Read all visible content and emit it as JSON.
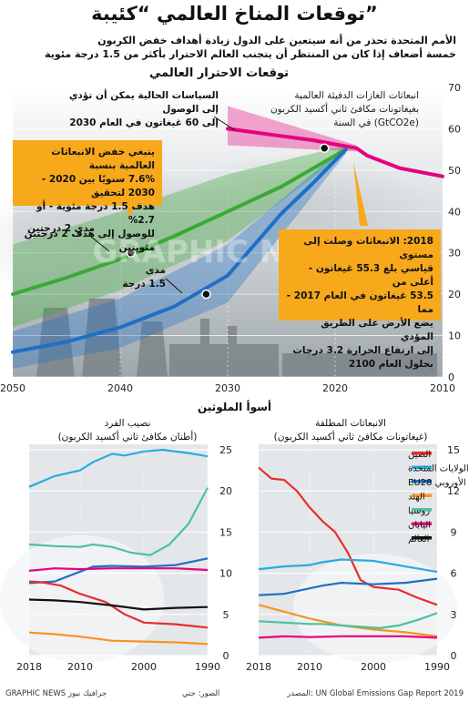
{
  "header": {
    "title": "توقعات المناخ العالمي “كئيبة”",
    "subtitle_line1": "الأمم المتحدة تحذر من أنه سيتعين على الدول زيادة أهداف خفض الكربون",
    "subtitle_line2": "خمسة أضعاف إذا كان من المنتظر أن يتجنب العالم الاحترار بأكثر من 1.5 درجة مئوية"
  },
  "main_chart": {
    "title": "توقعات الاحترار العالمي",
    "yaxis_note_1": "انبعاثات الغازات الدفيئة العالمية",
    "yaxis_note_2": "بغيغاتونات مكافئ ثاني أكسيد الكربون",
    "yaxis_note_3": "(GtCO2e) في السنة",
    "policy_note_1": "السياسات الحالية يمكن أن تؤدي إلى الوصول",
    "policy_note_2": "إلى 60 غيغاتون في العام 2030",
    "box_left_1": "ينبغي خفض الانبعاثات العالمية بنسبة",
    "box_left_2": "7.6% سنويًا بين 2020 - 2030 لتحقيق",
    "box_left_3": "هدف 1.5 درجة مئوية - أو 2.7%",
    "box_left_4": "للوصول إلى هدف 2 درجتين مئويتين",
    "box_right_1": "2018: الانبعاثات وصلت إلى مستوى",
    "box_right_2": "قياسي بلغ 55.3 غيغاتون - أعلى من",
    "box_right_3": "53.5 غيغاتون في العام 2017 - مما",
    "box_right_4": "يضع الأرض على الطريق المؤدي",
    "box_right_5": "إلى ارتفاع الحرارة 3.2 درجات",
    "box_right_6": "بحلول العام 2100",
    "label_2deg": "مدى 2 درجتين",
    "label_15deg_1": "مدى",
    "label_15deg_2": "1.5 درجة",
    "watermark": "GRAPHIC NEWS",
    "colors": {
      "current": "#e6007e",
      "two_deg": "#3aa935",
      "one_five": "#1f6fc5",
      "box": "#f7a81b"
    }
  },
  "bottom": {
    "section_title": "أسوأ الملوثين",
    "left_title_1": "نصيب الفرد",
    "left_title_2": "(أطنان مكافئ ثاني أكسيد الكربون)",
    "right_title_1": "الانبعاثات المطلقة",
    "right_title_2": "(غيغاتونات مكافئ ثاني أكسيد الكربون)"
  },
  "footer": {
    "source": "المصدر: UN Global Emissions Gap Report 2019",
    "photo": "الصور: جتي",
    "brand": "GRAPHIC NEWS جرافيك نيوز"
  },
  "chart_data": [
    {
      "type": "line",
      "title": "توقعات الاحترار العالمي",
      "xlabel": "",
      "ylabel": "انبعاثات الغازات الدفيئة العالمية بغيغاتونات مكافئ ثاني أكسيد الكربون (GtCO2e) في السنة",
      "xlim": [
        2010,
        2050
      ],
      "x_reversed": true,
      "ylim": [
        0,
        70
      ],
      "xticks": [
        2010,
        2020,
        2030,
        2040,
        2050
      ],
      "yticks": [
        0,
        10,
        20,
        30,
        40,
        50,
        60,
        70
      ],
      "series": [
        {
          "key": "historic",
          "color": "#e6007e",
          "points": [
            [
              2010,
              48.5
            ],
            [
              2014,
              50.5
            ],
            [
              2017,
              53.5
            ],
            [
              2018,
              55.3
            ]
          ]
        },
        {
          "key": "current_policy",
          "color": "#e6007e",
          "points": [
            [
              2018,
              55.3
            ],
            [
              2022,
              57.2
            ],
            [
              2026,
              58.6
            ],
            [
              2030,
              60
            ]
          ]
        },
        {
          "key": "two_degree",
          "color": "#3aa935",
          "points": [
            [
              2019,
              55
            ],
            [
              2025,
              46
            ],
            [
              2030,
              40
            ],
            [
              2035,
              34
            ],
            [
              2040,
              28.5
            ],
            [
              2045,
              24
            ],
            [
              2050,
              20
            ]
          ]
        },
        {
          "key": "one_five_degree",
          "color": "#1f6fc5",
          "points": [
            [
              2019,
              55
            ],
            [
              2022,
              47
            ],
            [
              2025,
              39.5
            ],
            [
              2030,
              24.5
            ],
            [
              2035,
              17
            ],
            [
              2040,
              12
            ],
            [
              2045,
              8.5
            ],
            [
              2050,
              6
            ]
          ]
        }
      ],
      "bands": [
        {
          "key": "current_policy_range",
          "color": "#e6007e",
          "upper": [
            [
              2018,
              56
            ],
            [
              2030,
              65.5
            ]
          ],
          "lower": [
            [
              2018,
              54.5
            ],
            [
              2030,
              56
            ]
          ]
        },
        {
          "key": "two_degree_range",
          "color": "#3aa935",
          "upper": [
            [
              2019,
              56
            ],
            [
              2030,
              49
            ],
            [
              2040,
              40
            ],
            [
              2050,
              32
            ]
          ],
          "lower": [
            [
              2019,
              54
            ],
            [
              2030,
              33
            ],
            [
              2040,
              21
            ],
            [
              2050,
              12
            ]
          ]
        },
        {
          "key": "one_five_degree_range",
          "color": "#1f6fc5",
          "upper": [
            [
              2019,
              56
            ],
            [
              2030,
              32
            ],
            [
              2040,
              19
            ],
            [
              2050,
              11
            ]
          ],
          "lower": [
            [
              2019,
              54
            ],
            [
              2030,
              18
            ],
            [
              2040,
              7
            ],
            [
              2050,
              2
            ]
          ]
        }
      ],
      "markers": [
        [
          2021,
          55.3
        ],
        [
          2039,
          30
        ],
        [
          2032,
          20
        ]
      ]
    },
    {
      "type": "line",
      "title": "نصيب الفرد",
      "ylabel": "أطنان مكافئ ثاني أكسيد الكربون",
      "xlim": [
        1990,
        2018
      ],
      "x_reversed": true,
      "ylim": [
        0,
        25
      ],
      "xticks": [
        1990,
        2000,
        2010,
        2018
      ],
      "yticks": [
        0,
        5,
        10,
        15,
        20,
        25
      ],
      "series": [
        {
          "name": "الولايات المتحدة",
          "color": "#29abe2",
          "points": [
            [
              1990,
              24.2
            ],
            [
              1993,
              24.6
            ],
            [
              1997,
              25
            ],
            [
              2000,
              24.8
            ],
            [
              2003,
              24.3
            ],
            [
              2005,
              24.5
            ],
            [
              2008,
              23.5
            ],
            [
              2010,
              22.5
            ],
            [
              2014,
              21.8
            ],
            [
              2018,
              20.5
            ]
          ]
        },
        {
          "name": "روسيا",
          "color": "#4ec0a0",
          "points": [
            [
              1990,
              20.4
            ],
            [
              1993,
              16
            ],
            [
              1996,
              13.5
            ],
            [
              1999,
              12.2
            ],
            [
              2002,
              12.5
            ],
            [
              2005,
              13.2
            ],
            [
              2008,
              13.5
            ],
            [
              2010,
              13.2
            ],
            [
              2014,
              13.3
            ],
            [
              2018,
              13.5
            ]
          ]
        },
        {
          "name": "الاتحاد الأوروبي EU28",
          "color": "#1f6fc5",
          "points": [
            [
              1990,
              11.8
            ],
            [
              1995,
              11
            ],
            [
              2000,
              10.8
            ],
            [
              2005,
              10.9
            ],
            [
              2008,
              10.8
            ],
            [
              2010,
              10.2
            ],
            [
              2014,
              9
            ],
            [
              2018,
              8.8
            ]
          ]
        },
        {
          "name": "اليابان",
          "color": "#e6007e",
          "points": [
            [
              1990,
              10.4
            ],
            [
              1995,
              10.6
            ],
            [
              2000,
              10.6
            ],
            [
              2005,
              10.6
            ],
            [
              2010,
              10.5
            ],
            [
              2014,
              10.6
            ],
            [
              2018,
              10.3
            ]
          ]
        },
        {
          "name": "الصين",
          "color": "#e62e2d",
          "points": [
            [
              1990,
              3.4
            ],
            [
              1995,
              3.8
            ],
            [
              2000,
              4
            ],
            [
              2003,
              5
            ],
            [
              2006,
              6.5
            ],
            [
              2010,
              7.5
            ],
            [
              2013,
              8.5
            ],
            [
              2016,
              8.9
            ],
            [
              2018,
              9
            ]
          ]
        },
        {
          "name": "العالم",
          "color": "#111111",
          "points": [
            [
              1990,
              5.9
            ],
            [
              1995,
              5.8
            ],
            [
              2000,
              5.6
            ],
            [
              2005,
              6.1
            ],
            [
              2010,
              6.5
            ],
            [
              2014,
              6.7
            ],
            [
              2018,
              6.8
            ]
          ]
        },
        {
          "name": "الهند",
          "color": "#f7941d",
          "points": [
            [
              1990,
              1.4
            ],
            [
              1995,
              1.6
            ],
            [
              2000,
              1.7
            ],
            [
              2005,
              1.8
            ],
            [
              2010,
              2.3
            ],
            [
              2014,
              2.6
            ],
            [
              2018,
              2.8
            ]
          ]
        }
      ]
    },
    {
      "type": "line",
      "title": "الانبعاثات المطلقة",
      "ylabel": "غيغاتونات مكافئ ثاني أكسيد الكربون",
      "xlim": [
        1990,
        2018
      ],
      "x_reversed": true,
      "ylim": [
        0,
        15
      ],
      "xticks": [
        1990,
        2000,
        2010,
        2018
      ],
      "yticks": [
        0,
        3,
        6,
        9,
        12,
        15
      ],
      "series": [
        {
          "name": "الصين",
          "color": "#e62e2d",
          "points": [
            [
              1990,
              3.7
            ],
            [
              1993,
              4.2
            ],
            [
              1996,
              4.8
            ],
            [
              2000,
              5
            ],
            [
              2002,
              5.5
            ],
            [
              2004,
              7.5
            ],
            [
              2006,
              9
            ],
            [
              2008,
              9.8
            ],
            [
              2010,
              10.8
            ],
            [
              2012,
              12
            ],
            [
              2014,
              12.8
            ],
            [
              2016,
              12.9
            ],
            [
              2018,
              13.7
            ]
          ]
        },
        {
          "name": "الولايات المتحدة",
          "color": "#29abe2",
          "points": [
            [
              1990,
              6.1
            ],
            [
              1995,
              6.5
            ],
            [
              2000,
              6.9
            ],
            [
              2005,
              7
            ],
            [
              2008,
              6.8
            ],
            [
              2010,
              6.6
            ],
            [
              2014,
              6.5
            ],
            [
              2018,
              6.3
            ]
          ]
        },
        {
          "name": "الاتحاد الأوروبي EU28",
          "color": "#1f6fc5",
          "points": [
            [
              1990,
              5.6
            ],
            [
              1995,
              5.3
            ],
            [
              2000,
              5.2
            ],
            [
              2005,
              5.3
            ],
            [
              2008,
              5.1
            ],
            [
              2010,
              4.9
            ],
            [
              2014,
              4.5
            ],
            [
              2018,
              4.4
            ]
          ]
        },
        {
          "name": "الهند",
          "color": "#f7941d",
          "points": [
            [
              1990,
              1.4
            ],
            [
              1995,
              1.7
            ],
            [
              2000,
              1.9
            ],
            [
              2005,
              2.2
            ],
            [
              2010,
              2.7
            ],
            [
              2014,
              3.2
            ],
            [
              2018,
              3.7
            ]
          ]
        },
        {
          "name": "روسيا",
          "color": "#4ec0a0",
          "points": [
            [
              1990,
              3.1
            ],
            [
              1993,
              2.6
            ],
            [
              1996,
              2.2
            ],
            [
              1999,
              2
            ],
            [
              2002,
              2.1
            ],
            [
              2005,
              2.2
            ],
            [
              2008,
              2.3
            ],
            [
              2010,
              2.3
            ],
            [
              2014,
              2.4
            ],
            [
              2018,
              2.5
            ]
          ]
        },
        {
          "name": "اليابان",
          "color": "#e6007e",
          "points": [
            [
              1990,
              1.3
            ],
            [
              1995,
              1.4
            ],
            [
              2000,
              1.4
            ],
            [
              2005,
              1.4
            ],
            [
              2010,
              1.35
            ],
            [
              2014,
              1.4
            ],
            [
              2018,
              1.3
            ]
          ]
        },
        {
          "name": "العالم",
          "color": "#111111",
          "points": []
        }
      ]
    }
  ]
}
